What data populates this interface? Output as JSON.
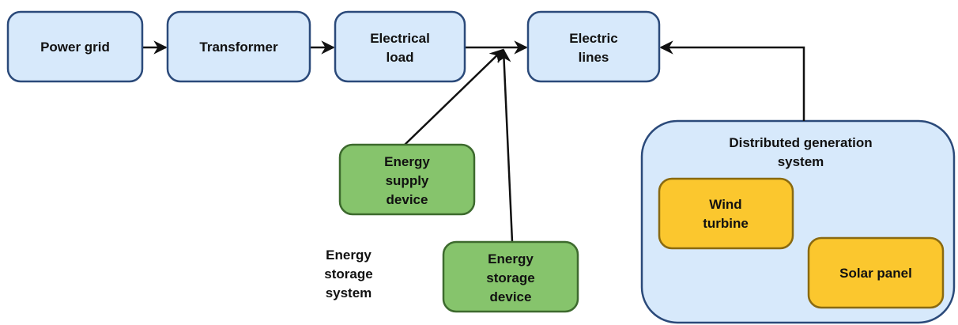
{
  "nodes": [
    {
      "label": [
        "Power grid"
      ]
    },
    {
      "label": [
        "Transformer"
      ]
    },
    {
      "label": [
        "Electrical",
        "load"
      ]
    },
    {
      "label": [
        "Electric",
        "lines"
      ]
    },
    {
      "label": [
        "Energy",
        "supply",
        "device"
      ]
    },
    {
      "label": [
        "Energy",
        "storage",
        "device"
      ]
    },
    {
      "label": [
        "Wind",
        "turbine"
      ]
    },
    {
      "label": [
        "Solar panel"
      ]
    }
  ],
  "group": {
    "label": [
      "Distributed generation",
      "system"
    ]
  },
  "annotation": {
    "label": [
      "Energy",
      "storage",
      "system"
    ]
  }
}
